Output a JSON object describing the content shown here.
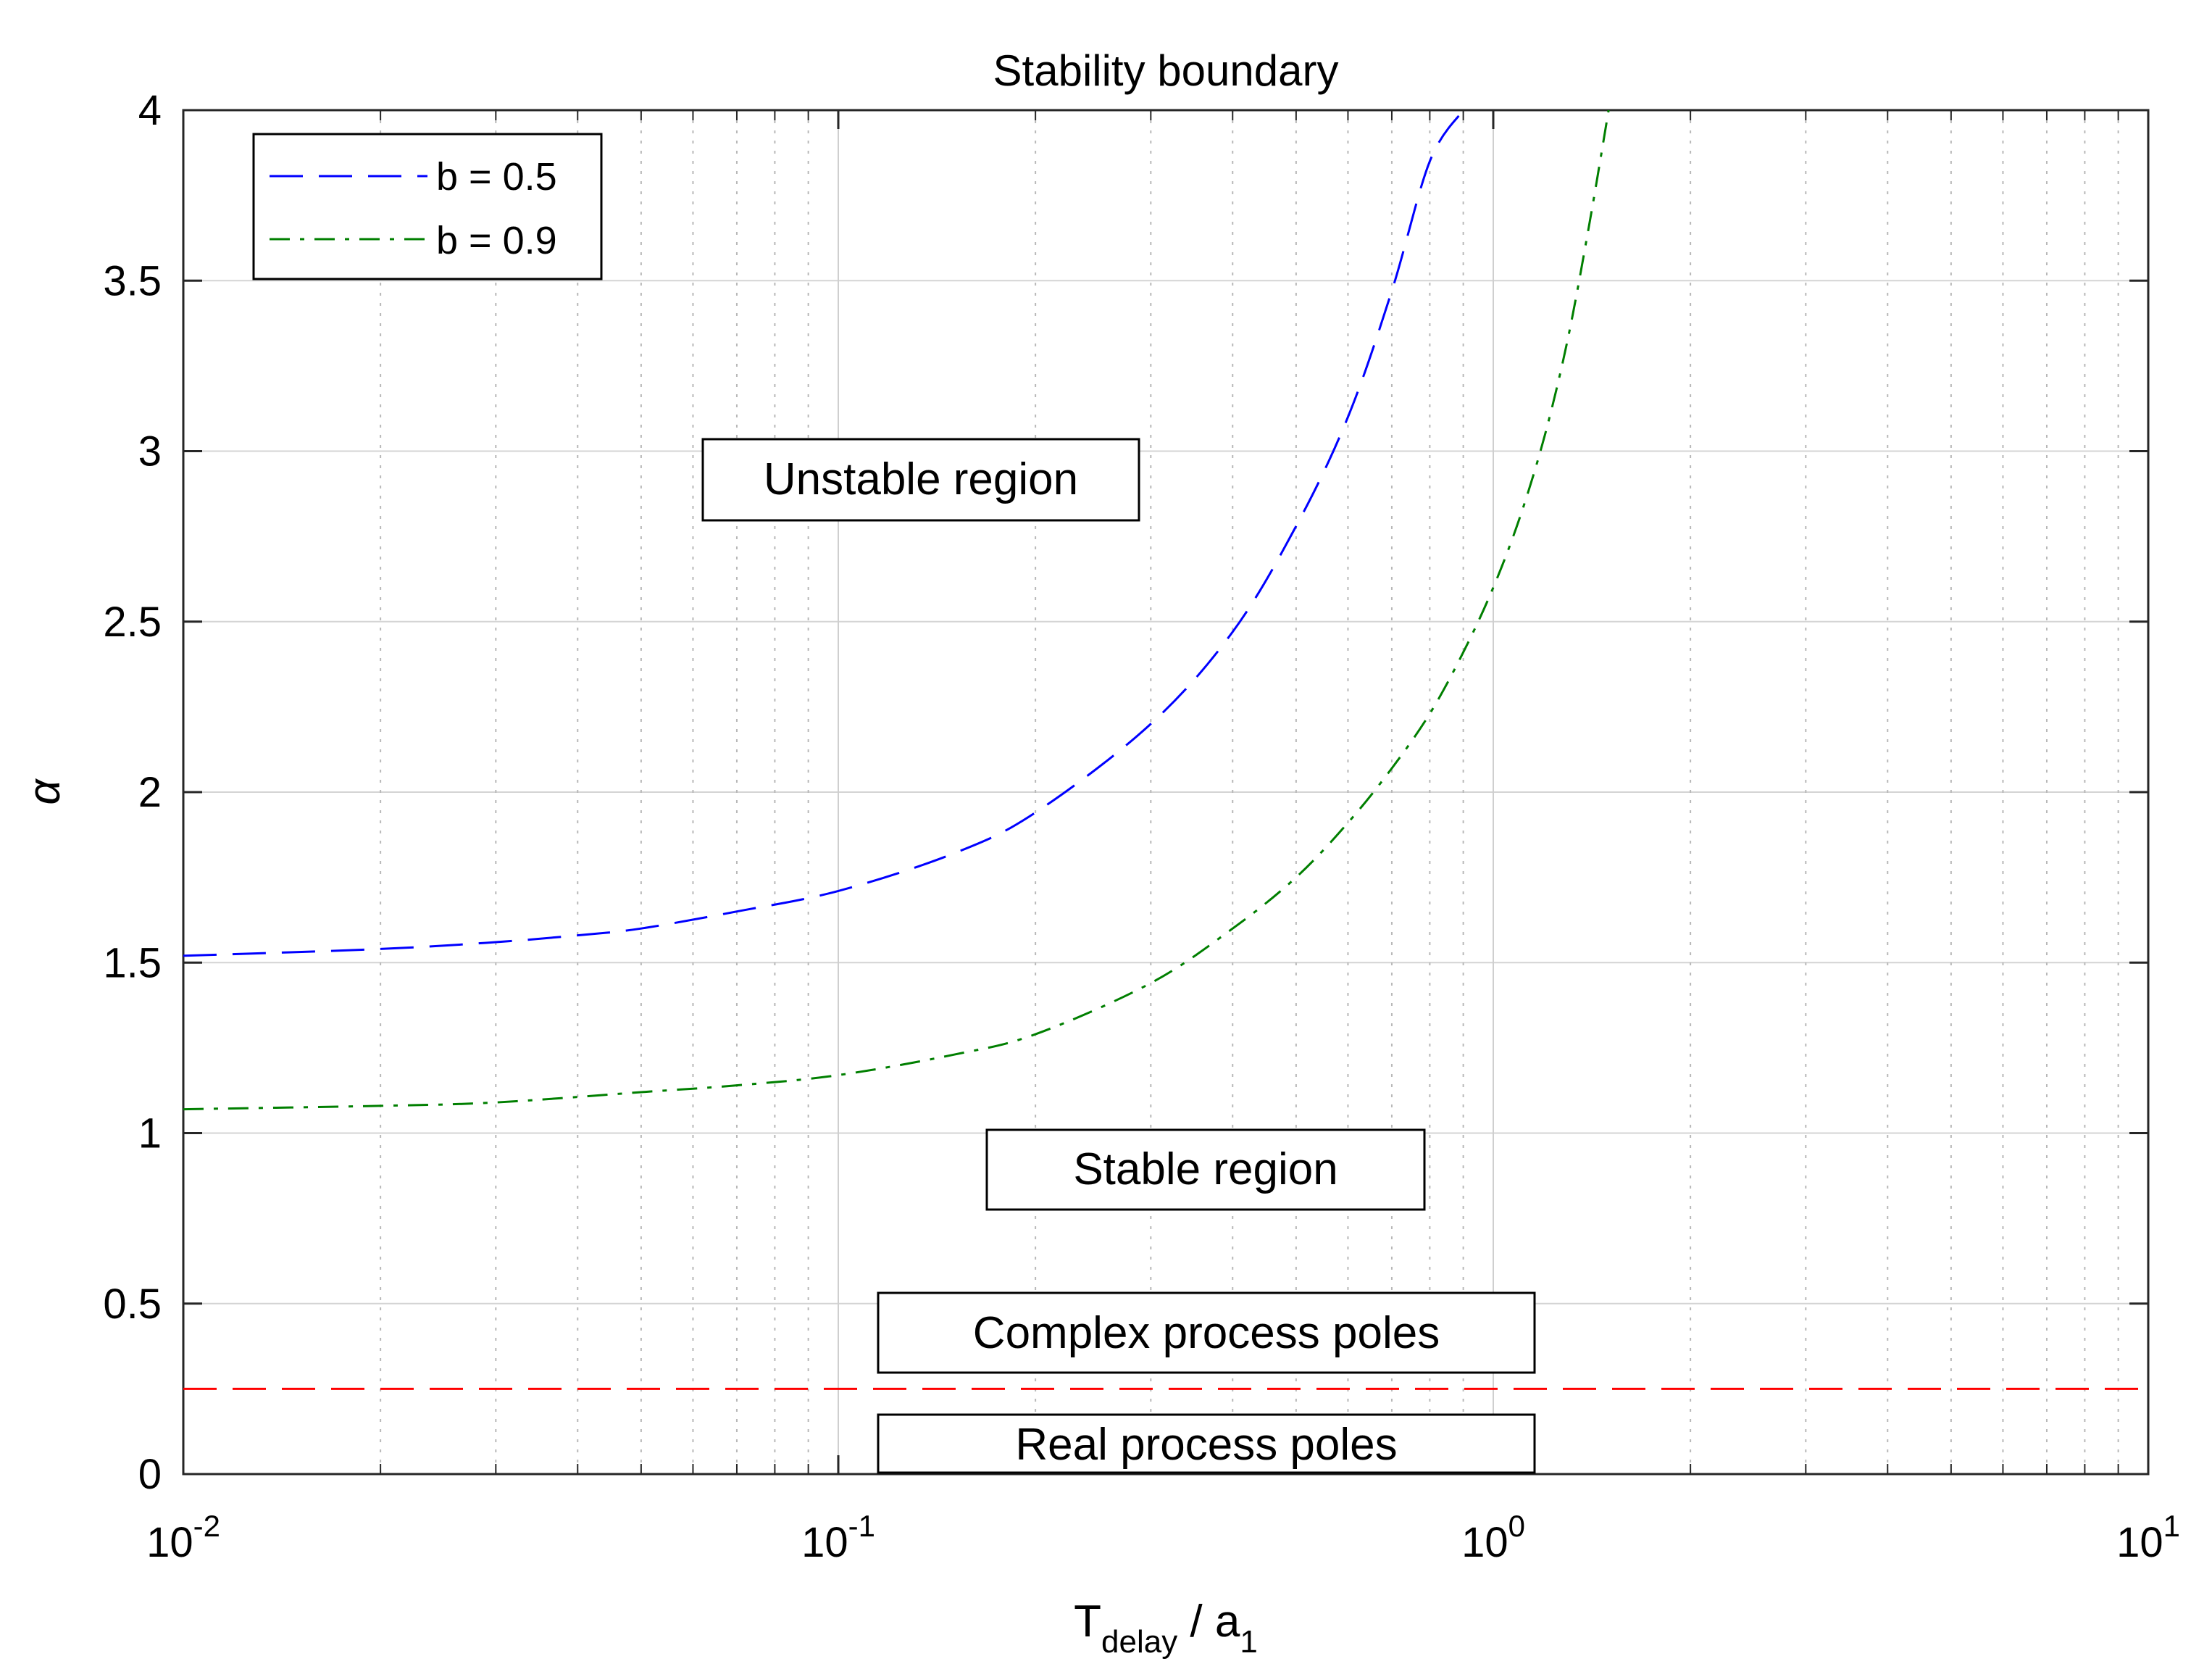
{
  "chart_data": {
    "type": "line",
    "title": "Stability boundary",
    "xlabel": {
      "main": "T",
      "sub": "delay",
      "rest": " / a",
      "sub2": "1"
    },
    "ylabel": "α",
    "xscale": "log",
    "xlim": [
      0.01,
      10
    ],
    "ylim": [
      0,
      4
    ],
    "grid": "on",
    "legend_location": "top-left",
    "x_ticks": [
      {
        "value": 0.01,
        "base": "10",
        "exp": "-2"
      },
      {
        "value": 0.1,
        "base": "10",
        "exp": "-1"
      },
      {
        "value": 1,
        "base": "10",
        "exp": "0"
      },
      {
        "value": 10,
        "base": "10",
        "exp": "1"
      }
    ],
    "y_ticks": [
      {
        "value": 0,
        "label": "0"
      },
      {
        "value": 0.5,
        "label": "0.5"
      },
      {
        "value": 1,
        "label": "1"
      },
      {
        "value": 1.5,
        "label": "1.5"
      },
      {
        "value": 2,
        "label": "2"
      },
      {
        "value": 2.5,
        "label": "2.5"
      },
      {
        "value": 3,
        "label": "3"
      },
      {
        "value": 3.5,
        "label": "3.5"
      },
      {
        "value": 4,
        "label": "4"
      }
    ],
    "series": [
      {
        "name": "b = 0.5",
        "color": "#0000ff",
        "style": "dashed",
        "x": [
          0.01,
          0.02,
          0.03,
          0.04,
          0.05,
          0.07,
          0.1,
          0.15,
          0.2,
          0.3,
          0.4,
          0.5,
          0.6,
          0.7,
          0.8,
          0.9
        ],
        "y": [
          1.52,
          1.54,
          1.56,
          1.58,
          1.6,
          1.65,
          1.71,
          1.82,
          1.94,
          2.2,
          2.47,
          2.78,
          3.1,
          3.47,
          3.85,
          4.0
        ]
      },
      {
        "name": "b = 0.9",
        "color": "#007f00",
        "style": "dashdot",
        "x": [
          0.01,
          0.02,
          0.03,
          0.05,
          0.07,
          0.1,
          0.15,
          0.2,
          0.3,
          0.4,
          0.5,
          0.6,
          0.7,
          0.8,
          0.9,
          1.0,
          1.1,
          1.2,
          1.3,
          1.4,
          1.5
        ],
        "y": [
          1.07,
          1.08,
          1.09,
          1.12,
          1.14,
          1.17,
          1.23,
          1.29,
          1.44,
          1.6,
          1.75,
          1.91,
          2.07,
          2.23,
          2.41,
          2.6,
          2.81,
          3.05,
          3.33,
          3.66,
          4.0
        ]
      }
    ],
    "reference_lines": [
      {
        "name": "complex-real-boundary",
        "y": 0.25,
        "color": "#ff0000",
        "style": "dashed"
      }
    ],
    "annotations": [
      {
        "name": "unstable-region-label",
        "text": "Unstable region"
      },
      {
        "name": "stable-region-label",
        "text": "Stable region"
      },
      {
        "name": "complex-poles-label",
        "text": "Complex process poles"
      },
      {
        "name": "real-poles-label",
        "text": "Real process poles"
      }
    ]
  }
}
